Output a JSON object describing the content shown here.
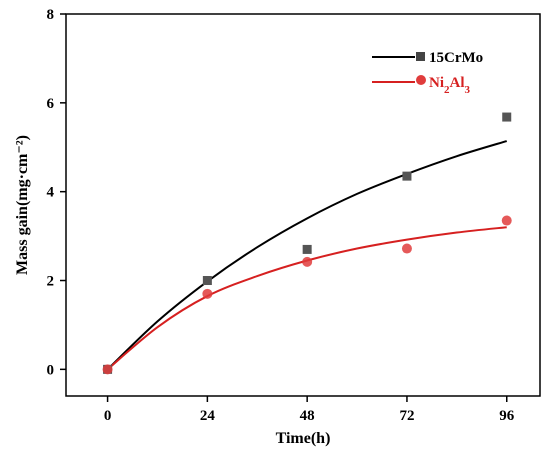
{
  "chart_data": {
    "type": "scatter",
    "xlabel": "Time(h)",
    "ylabel": "Mass gain(mg·cm⁻²)",
    "xlim": [
      -10,
      104
    ],
    "ylim": [
      -0.6,
      8
    ],
    "xticks": [
      0,
      24,
      48,
      72,
      96
    ],
    "yticks": [
      0,
      2,
      4,
      6,
      8
    ],
    "xtick_labels": [
      "0",
      "24",
      "48",
      "72",
      "96"
    ],
    "ytick_labels": [
      "0",
      "2",
      "4",
      "6",
      "8"
    ],
    "legend_position": "top-right",
    "series": [
      {
        "name": "15CrMo",
        "marker": "square",
        "marker_color": "#555555",
        "line_color": "#000000",
        "x": [
          0,
          24,
          48,
          72,
          96
        ],
        "y": [
          0,
          2.0,
          2.7,
          4.35,
          5.68
        ],
        "fit_x": [
          0,
          12,
          24,
          36,
          48,
          60,
          72,
          84,
          96
        ],
        "fit_y": [
          0,
          1.08,
          1.98,
          2.75,
          3.4,
          3.95,
          4.4,
          4.8,
          5.14
        ]
      },
      {
        "name": "Ni2Al3",
        "label_main": "Ni",
        "label_sub1": "2",
        "label_mid": "Al",
        "label_sub2": "3",
        "marker": "circle",
        "marker_color": "#e03c3c",
        "line_color": "#d62020",
        "x": [
          0,
          24,
          48,
          72,
          96
        ],
        "y": [
          0,
          1.7,
          2.42,
          2.72,
          3.35
        ],
        "fit_x": [
          0,
          12,
          24,
          36,
          48,
          60,
          72,
          84,
          96
        ],
        "fit_y": [
          0,
          0.95,
          1.65,
          2.1,
          2.45,
          2.72,
          2.92,
          3.08,
          3.2
        ]
      }
    ]
  }
}
